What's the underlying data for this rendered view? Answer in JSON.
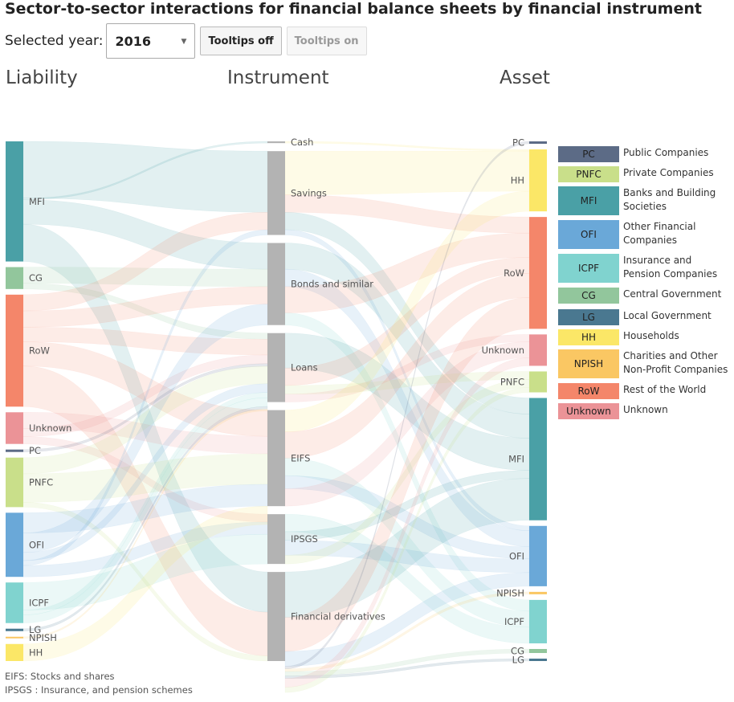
{
  "title": "Sector-to-sector interactions for financial balance sheets by financial instrument",
  "controls": {
    "year_label": "Selected year:",
    "year_value": "2016",
    "tooltips_off": "Tooltips off",
    "tooltips_on": "Tooltips on"
  },
  "columns": {
    "liability": "Liability",
    "instrument": "Instrument",
    "asset": "Asset"
  },
  "colors": {
    "PC": "#5c6b86",
    "PNFC": "#c9df8a",
    "MFI": "#4aa0a6",
    "OFI": "#6aa8d8",
    "ICPF": "#80d3cf",
    "CG": "#92c69c",
    "LG": "#4a7890",
    "HH": "#fbe767",
    "NPISH": "#fac763",
    "RoW": "#f4866a",
    "Unknown": "#eb9397",
    "instrument": "#b3b3b3"
  },
  "chart_data": {
    "type": "sankey",
    "title": "Sector-to-sector interactions for financial balance sheets by financial instrument",
    "year": "2016",
    "liability_nodes": [
      {
        "name": "MFI",
        "value": 148
      },
      {
        "name": "CG",
        "value": 27
      },
      {
        "name": "RoW",
        "value": 138
      },
      {
        "name": "Unknown",
        "value": 39
      },
      {
        "name": "PC",
        "value": 3
      },
      {
        "name": "PNFC",
        "value": 61
      },
      {
        "name": "OFI",
        "value": 79
      },
      {
        "name": "ICPF",
        "value": 50
      },
      {
        "name": "LG",
        "value": 3
      },
      {
        "name": "NPISH",
        "value": 2
      },
      {
        "name": "HH",
        "value": 21
      }
    ],
    "instrument_nodes": [
      {
        "name": "Cash",
        "value": 2
      },
      {
        "name": "Savings",
        "value": 96
      },
      {
        "name": "Bonds and similar",
        "value": 94
      },
      {
        "name": "Loans",
        "value": 79
      },
      {
        "name": "EIFS",
        "value": 110
      },
      {
        "name": "IPSGS",
        "value": 57
      },
      {
        "name": "Financial derivatives",
        "value": 102
      }
    ],
    "asset_nodes": [
      {
        "name": "PC",
        "value": 3
      },
      {
        "name": "HH",
        "value": 77
      },
      {
        "name": "RoW",
        "value": 139
      },
      {
        "name": "Unknown",
        "value": 39
      },
      {
        "name": "PNFC",
        "value": 26
      },
      {
        "name": "MFI",
        "value": 152
      },
      {
        "name": "OFI",
        "value": 75
      },
      {
        "name": "NPISH",
        "value": 3
      },
      {
        "name": "ICPF",
        "value": 54
      },
      {
        "name": "CG",
        "value": 5
      },
      {
        "name": "LG",
        "value": 3
      }
    ],
    "flows_liability_to_instrument": [
      [
        "MFI",
        "Savings",
        70
      ],
      [
        "MFI",
        "Cash",
        2
      ],
      [
        "MFI",
        "Bonds and similar",
        30
      ],
      [
        "MFI",
        "Financial derivatives",
        46
      ],
      [
        "CG",
        "Bonds and similar",
        20
      ],
      [
        "CG",
        "Loans",
        7
      ],
      [
        "RoW",
        "Savings",
        20
      ],
      [
        "RoW",
        "Bonds and similar",
        20
      ],
      [
        "RoW",
        "Loans",
        18
      ],
      [
        "RoW",
        "EIFS",
        30
      ],
      [
        "RoW",
        "Financial derivatives",
        50
      ],
      [
        "Unknown",
        "EIFS",
        20
      ],
      [
        "Unknown",
        "Loans",
        10
      ],
      [
        "Unknown",
        "IPSGS",
        9
      ],
      [
        "PC",
        "Loans",
        3
      ],
      [
        "PNFC",
        "Loans",
        20
      ],
      [
        "PNFC",
        "EIFS",
        35
      ],
      [
        "PNFC",
        "Financial derivatives",
        6
      ],
      [
        "OFI",
        "EIFS",
        25
      ],
      [
        "OFI",
        "Bonds and similar",
        24
      ],
      [
        "OFI",
        "Loans",
        10
      ],
      [
        "OFI",
        "Savings",
        6
      ],
      [
        "OFI",
        "IPSGS",
        14
      ],
      [
        "ICPF",
        "IPSGS",
        34
      ],
      [
        "ICPF",
        "Loans",
        6
      ],
      [
        "ICPF",
        "Financial derivatives",
        0
      ],
      [
        "ICPF",
        "EIFS",
        0
      ],
      [
        "ICPF",
        "Savings",
        0
      ],
      [
        "ICPF",
        "Bonds and similar",
        0
      ],
      [
        "ICPF",
        "Cash",
        0
      ],
      [
        "ICPF",
        "Loans",
        10
      ],
      [
        "LG",
        "Loans",
        3
      ],
      [
        "NPISH",
        "Loans",
        2
      ],
      [
        "HH",
        "Loans",
        0
      ],
      [
        "HH",
        "EIFS",
        0
      ],
      [
        "HH",
        "Bonds and similar",
        0
      ],
      [
        "HH",
        "Savings",
        0
      ],
      [
        "HH",
        "Financial derivatives",
        0
      ],
      [
        "HH",
        "IPSGS",
        0
      ],
      [
        "HH",
        "Cash",
        0
      ],
      [
        "HH",
        "EIFS",
        0
      ],
      [
        "HH",
        "Loans",
        0
      ],
      [
        "HH",
        "Savings",
        0
      ],
      [
        "HH",
        "Financial derivatives",
        0
      ],
      [
        "HH",
        "Bonds and similar",
        0
      ],
      [
        "HH",
        "IPSGS",
        0
      ],
      [
        "HH",
        "EIFS",
        21
      ]
    ],
    "flows_instrument_to_asset": [
      [
        "Cash",
        "HH",
        2
      ],
      [
        "Savings",
        "HH",
        50
      ],
      [
        "Savings",
        "RoW",
        20
      ],
      [
        "Savings",
        "MFI",
        20
      ],
      [
        "Savings",
        "OFI",
        6
      ],
      [
        "Bonds and similar",
        "MFI",
        30
      ],
      [
        "Bonds and similar",
        "OFI",
        20
      ],
      [
        "Bonds and similar",
        "RoW",
        30
      ],
      [
        "Bonds and similar",
        "ICPF",
        14
      ],
      [
        "Loans",
        "MFI",
        40
      ],
      [
        "Loans",
        "RoW",
        20
      ],
      [
        "Loans",
        "PNFC",
        10
      ],
      [
        "Loans",
        "Unknown",
        9
      ],
      [
        "EIFS",
        "HH",
        25
      ],
      [
        "EIFS",
        "RoW",
        30
      ],
      [
        "EIFS",
        "ICPF",
        20
      ],
      [
        "EIFS",
        "OFI",
        15
      ],
      [
        "EIFS",
        "Unknown",
        20
      ],
      [
        "IPSGS",
        "HH",
        0
      ],
      [
        "IPSGS",
        "ICPF",
        20
      ],
      [
        "IPSGS",
        "MFI",
        10
      ],
      [
        "IPSGS",
        "OFI",
        17
      ],
      [
        "IPSGS",
        "PNFC",
        10
      ],
      [
        "Financial derivatives",
        "MFI",
        52
      ],
      [
        "Financial derivatives",
        "RoW",
        39
      ],
      [
        "Financial derivatives",
        "OFI",
        17
      ],
      [
        "Financial derivatives",
        "PC",
        3
      ],
      [
        "Financial derivatives",
        "NPISH",
        3
      ],
      [
        "Financial derivatives",
        "CG",
        5
      ],
      [
        "Financial derivatives",
        "LG",
        3
      ],
      [
        "Financial derivatives",
        "Unknown",
        10
      ],
      [
        "Financial derivatives",
        "PNFC",
        6
      ]
    ]
  },
  "legend": [
    {
      "code": "PC",
      "label": "Public Companies"
    },
    {
      "code": "PNFC",
      "label": "Private Companies"
    },
    {
      "code": "MFI",
      "label": "Banks and Building Societies"
    },
    {
      "code": "OFI",
      "label": "Other Financial Companies"
    },
    {
      "code": "ICPF",
      "label": "Insurance and Pension Companies"
    },
    {
      "code": "CG",
      "label": "Central Government"
    },
    {
      "code": "LG",
      "label": "Local Government"
    },
    {
      "code": "HH",
      "label": "Households"
    },
    {
      "code": "NPISH",
      "label": "Charities and Other Non-Profit Companies"
    },
    {
      "code": "RoW",
      "label": "Rest of the World"
    },
    {
      "code": "Unknown",
      "label": "Unknown"
    }
  ],
  "footnotes": {
    "eifs": "EIFS: Stocks and shares",
    "ipsgs": "IPSGS : Insurance, and pension schemes"
  }
}
